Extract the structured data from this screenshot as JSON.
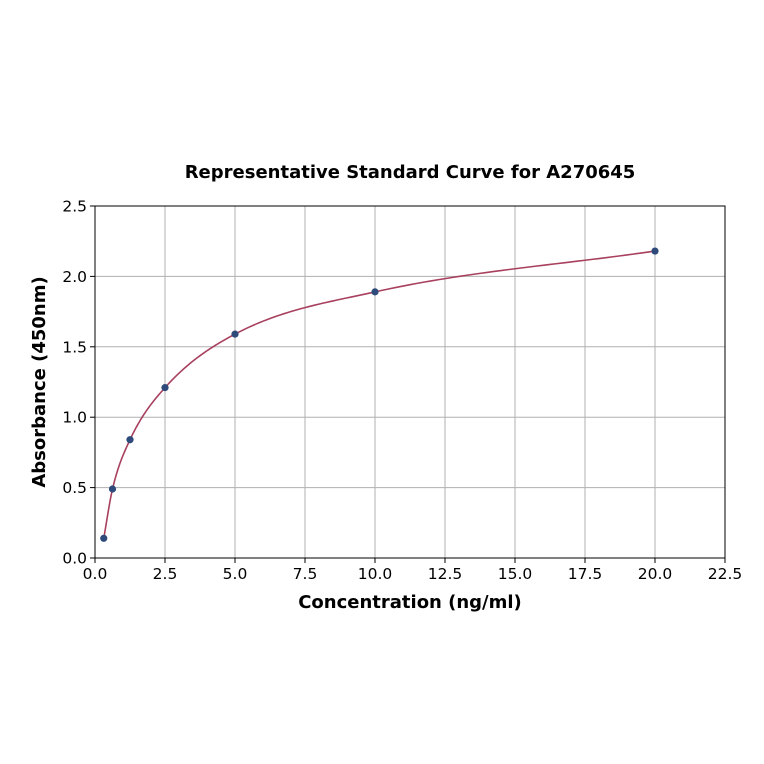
{
  "chart_data": {
    "type": "scatter",
    "title": "Representative Standard Curve for A270645",
    "xlabel": "Concentration (ng/ml)",
    "ylabel": "Absorbance (450nm)",
    "xlim": [
      0,
      22.5
    ],
    "ylim": [
      0,
      2.5
    ],
    "x_ticks": [
      "0.0",
      "2.5",
      "5.0",
      "7.5",
      "10.0",
      "12.5",
      "15.0",
      "17.5",
      "20.0",
      "22.5"
    ],
    "y_ticks": [
      "0.0",
      "0.5",
      "1.0",
      "1.5",
      "2.0",
      "2.5"
    ],
    "grid": true,
    "series": [
      {
        "points": [
          {
            "x": 0.3125,
            "y": 0.14
          },
          {
            "x": 0.625,
            "y": 0.49
          },
          {
            "x": 1.25,
            "y": 0.84
          },
          {
            "x": 2.5,
            "y": 1.21
          },
          {
            "x": 5.0,
            "y": 1.59
          },
          {
            "x": 10.0,
            "y": 1.89
          },
          {
            "x": 20.0,
            "y": 2.18
          }
        ],
        "marker_color": "#2e4a7a",
        "fit_curve_color": "#a8405e"
      }
    ]
  }
}
